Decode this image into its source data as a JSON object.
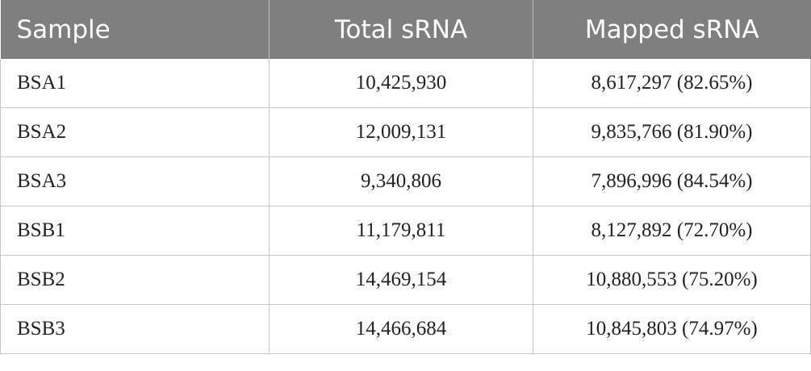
{
  "table": {
    "headers": [
      "Sample",
      "Total sRNA",
      "Mapped sRNA"
    ],
    "rows": [
      {
        "sample": "BSA1",
        "total": "10,425,930",
        "mapped": "8,617,297 (82.65%)"
      },
      {
        "sample": "BSA2",
        "total": "12,009,131",
        "mapped": "9,835,766 (81.90%)"
      },
      {
        "sample": "BSA3",
        "total": "9,340,806",
        "mapped": "7,896,996 (84.54%)"
      },
      {
        "sample": "BSB1",
        "total": "11,179,811",
        "mapped": "8,127,892 (72.70%)"
      },
      {
        "sample": "BSB2",
        "total": "14,469,154",
        "mapped": "10,880,553 (75.20%)"
      },
      {
        "sample": "BSB3",
        "total": "14,466,684",
        "mapped": "10,845,803 (74.97%)"
      }
    ]
  },
  "colors": {
    "header_bg": "#7f7f7f",
    "header_text": "#ffffff",
    "border": "#c6c6c6"
  }
}
